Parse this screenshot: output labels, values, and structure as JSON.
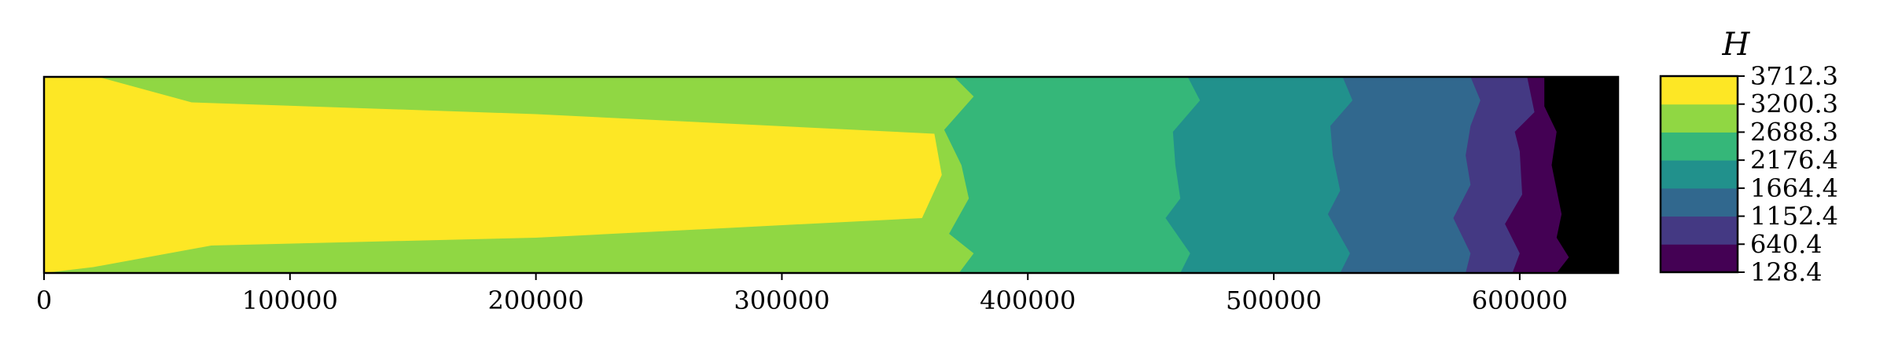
{
  "chart_data": {
    "type": "contour",
    "title": "",
    "xlabel": "",
    "ylabel": "",
    "xlim": [
      0,
      640000
    ],
    "x_ticks": [
      0,
      100000,
      200000,
      300000,
      400000,
      500000,
      600000
    ],
    "x_tick_labels": [
      "0",
      "100000",
      "200000",
      "300000",
      "400000",
      "500000",
      "600000"
    ],
    "y_ticks": [],
    "colorbar": {
      "label": "H",
      "levels": [
        128.4,
        640.4,
        1152.4,
        1664.4,
        2176.4,
        2688.3,
        3200.3,
        3712.3
      ],
      "level_labels": [
        "128.4",
        "640.4",
        "1152.4",
        "1664.4",
        "2176.4",
        "2688.3",
        "3200.3",
        "3712.3"
      ],
      "colors": [
        "#440154",
        "#443983",
        "#31688e",
        "#21918c",
        "#35b779",
        "#90d743",
        "#fde725"
      ]
    },
    "boundaries": [
      {
        "level": 3200.3,
        "points": [
          [
            0,
            1.0
          ],
          [
            22000,
            1.0
          ],
          [
            60000,
            0.87
          ],
          [
            200000,
            0.81
          ],
          [
            362000,
            0.71
          ],
          [
            365000,
            0.5
          ],
          [
            357000,
            0.28
          ],
          [
            200000,
            0.18
          ],
          [
            68000,
            0.14
          ],
          [
            20000,
            0.03
          ],
          [
            0,
            0.0
          ]
        ]
      },
      {
        "level": 2688.3,
        "points": [
          [
            370000,
            1.0
          ],
          [
            378000,
            0.9
          ],
          [
            366000,
            0.73
          ],
          [
            373000,
            0.55
          ],
          [
            376000,
            0.38
          ],
          [
            368000,
            0.2
          ],
          [
            378000,
            0.1
          ],
          [
            372000,
            0.0
          ]
        ]
      },
      {
        "level": 2176.4,
        "points": [
          [
            465000,
            1.0
          ],
          [
            470000,
            0.88
          ],
          [
            459000,
            0.72
          ],
          [
            460000,
            0.55
          ],
          [
            462000,
            0.38
          ],
          [
            456000,
            0.28
          ],
          [
            466000,
            0.1
          ],
          [
            462000,
            0.0
          ]
        ]
      },
      {
        "level": 1664.4,
        "points": [
          [
            528000,
            1.0
          ],
          [
            532000,
            0.88
          ],
          [
            523000,
            0.75
          ],
          [
            524000,
            0.6
          ],
          [
            527000,
            0.42
          ],
          [
            522000,
            0.3
          ],
          [
            531000,
            0.1
          ],
          [
            527000,
            0.0
          ]
        ]
      },
      {
        "level": 1152.4,
        "points": [
          [
            580000,
            1.0
          ],
          [
            584000,
            0.88
          ],
          [
            580000,
            0.75
          ],
          [
            578000,
            0.6
          ],
          [
            580000,
            0.45
          ],
          [
            573000,
            0.28
          ],
          [
            580000,
            0.1
          ],
          [
            578000,
            0.0
          ]
        ]
      },
      {
        "level": 640.4,
        "points": [
          [
            603000,
            1.0
          ],
          [
            606000,
            0.82
          ],
          [
            598000,
            0.72
          ],
          [
            600000,
            0.62
          ],
          [
            601000,
            0.4
          ],
          [
            594000,
            0.25
          ],
          [
            600000,
            0.1
          ],
          [
            597000,
            0.0
          ]
        ]
      },
      {
        "level": 128.4,
        "points": [
          [
            610000,
            1.0
          ],
          [
            610000,
            0.85
          ],
          [
            615000,
            0.72
          ],
          [
            613000,
            0.55
          ],
          [
            617000,
            0.3
          ],
          [
            615000,
            0.18
          ],
          [
            620000,
            0.08
          ],
          [
            615000,
            0.0
          ]
        ]
      }
    ]
  }
}
